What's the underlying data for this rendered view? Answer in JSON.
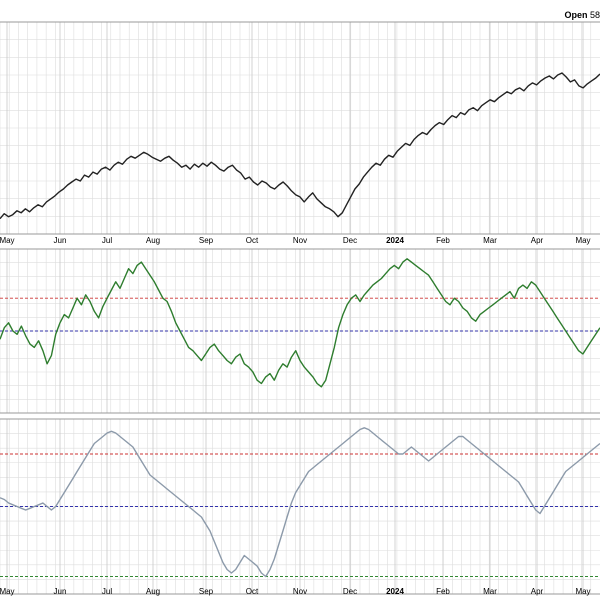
{
  "header": {
    "open_label": "Open",
    "open_value": "58"
  },
  "colors": {
    "price_line": "#222222",
    "indicator1_line": "#2e7d2e",
    "indicator2_line": "#8c9aaa",
    "upper_ref": "#cc3333",
    "mid_ref": "#3333aa",
    "lower_ref": "#338833",
    "grid": "#dddddd"
  },
  "chart_data": [
    {
      "type": "line",
      "panel": "price",
      "x_ticks": [
        "May",
        "Jun",
        "Jul",
        "Aug",
        "Sep",
        "Oct",
        "Nov",
        "Dec",
        "2024",
        "Feb",
        "Mar",
        "Apr",
        "May"
      ],
      "series": [
        {
          "values": [
            0.08,
            0.13,
            0.1,
            0.12,
            0.16,
            0.14,
            0.18,
            0.15,
            0.19,
            0.22,
            0.2,
            0.25,
            0.28,
            0.31,
            0.35,
            0.38,
            0.42,
            0.45,
            0.48,
            0.46,
            0.52,
            0.5,
            0.55,
            0.53,
            0.58,
            0.6,
            0.57,
            0.62,
            0.65,
            0.63,
            0.68,
            0.71,
            0.69,
            0.72,
            0.75,
            0.73,
            0.7,
            0.68,
            0.66,
            0.69,
            0.71,
            0.67,
            0.64,
            0.6,
            0.62,
            0.58,
            0.63,
            0.6,
            0.64,
            0.61,
            0.65,
            0.62,
            0.58,
            0.56,
            0.6,
            0.62,
            0.57,
            0.54,
            0.48,
            0.5,
            0.45,
            0.42,
            0.46,
            0.44,
            0.4,
            0.38,
            0.42,
            0.45,
            0.41,
            0.36,
            0.32,
            0.3,
            0.25,
            0.3,
            0.34,
            0.28,
            0.24,
            0.2,
            0.18,
            0.15,
            0.1,
            0.14,
            0.22,
            0.3,
            0.38,
            0.43,
            0.5,
            0.55,
            0.6,
            0.64,
            0.62,
            0.68,
            0.72,
            0.7,
            0.76,
            0.8,
            0.84,
            0.82,
            0.88,
            0.92,
            0.95,
            0.93,
            0.98,
            1.02,
            1.05,
            1.03,
            1.08,
            1.12,
            1.1,
            1.15,
            1.13,
            1.18,
            1.2,
            1.17,
            1.22,
            1.25,
            1.28,
            1.26,
            1.3,
            1.33,
            1.36,
            1.34,
            1.38,
            1.4,
            1.37,
            1.42,
            1.45,
            1.43,
            1.47,
            1.5,
            1.52,
            1.49,
            1.53,
            1.55,
            1.51,
            1.46,
            1.48,
            1.42,
            1.4,
            1.44,
            1.47,
            1.5,
            1.54
          ]
        }
      ]
    },
    {
      "type": "line",
      "panel": "indicator-1",
      "x_ticks": [
        "May",
        "Jun",
        "Jul",
        "Aug",
        "Sep",
        "Oct",
        "Nov",
        "Dec",
        "2024",
        "Feb",
        "Mar",
        "Apr",
        "May"
      ],
      "ylim": [
        0,
        100
      ],
      "reference_lines": [
        70,
        50
      ],
      "series": [
        {
          "values": [
            45,
            52,
            55,
            50,
            48,
            53,
            47,
            42,
            40,
            44,
            38,
            30,
            35,
            48,
            55,
            60,
            58,
            64,
            70,
            66,
            72,
            68,
            62,
            58,
            65,
            70,
            75,
            80,
            76,
            82,
            88,
            85,
            90,
            92,
            88,
            84,
            80,
            75,
            70,
            68,
            62,
            55,
            50,
            45,
            40,
            38,
            35,
            32,
            36,
            40,
            42,
            38,
            35,
            32,
            30,
            34,
            36,
            30,
            28,
            25,
            20,
            18,
            22,
            24,
            20,
            26,
            30,
            28,
            34,
            38,
            32,
            28,
            25,
            22,
            18,
            16,
            20,
            30,
            40,
            52,
            60,
            66,
            70,
            72,
            68,
            72,
            75,
            78,
            80,
            82,
            85,
            88,
            90,
            88,
            92,
            94,
            92,
            90,
            88,
            86,
            84,
            80,
            76,
            72,
            68,
            66,
            70,
            68,
            64,
            62,
            58,
            56,
            60,
            62,
            64,
            66,
            68,
            70,
            72,
            74,
            70,
            76,
            78,
            76,
            80,
            78,
            74,
            70,
            66,
            62,
            58,
            54,
            50,
            46,
            42,
            38,
            36,
            40,
            44,
            48,
            52
          ]
        }
      ]
    },
    {
      "type": "line",
      "panel": "indicator-2",
      "x_ticks": [
        "May",
        "Jun",
        "Jul",
        "Aug",
        "Sep",
        "Oct",
        "Nov",
        "Dec",
        "2024",
        "Feb",
        "Mar",
        "Apr",
        "May"
      ],
      "ylim": [
        0,
        100
      ],
      "reference_lines": [
        80,
        50,
        10
      ],
      "series": [
        {
          "values": [
            55,
            54,
            52,
            51,
            50,
            49,
            48,
            49,
            50,
            51,
            52,
            50,
            48,
            50,
            54,
            58,
            62,
            66,
            70,
            74,
            78,
            82,
            86,
            88,
            90,
            92,
            93,
            92,
            90,
            88,
            86,
            84,
            80,
            76,
            72,
            68,
            66,
            64,
            62,
            60,
            58,
            56,
            54,
            52,
            50,
            48,
            46,
            44,
            40,
            36,
            30,
            24,
            18,
            14,
            12,
            14,
            18,
            22,
            20,
            18,
            16,
            12,
            10,
            14,
            20,
            28,
            36,
            44,
            52,
            58,
            62,
            66,
            70,
            72,
            74,
            76,
            78,
            80,
            82,
            84,
            86,
            88,
            90,
            92,
            94,
            95,
            94,
            92,
            90,
            88,
            86,
            84,
            82,
            80,
            80,
            82,
            84,
            82,
            80,
            78,
            76,
            78,
            80,
            82,
            84,
            86,
            88,
            90,
            90,
            88,
            86,
            84,
            82,
            80,
            78,
            76,
            74,
            72,
            70,
            68,
            66,
            64,
            60,
            56,
            52,
            48,
            46,
            50,
            54,
            58,
            62,
            66,
            70,
            72,
            74,
            76,
            78,
            80,
            82,
            84,
            86
          ]
        }
      ]
    }
  ]
}
